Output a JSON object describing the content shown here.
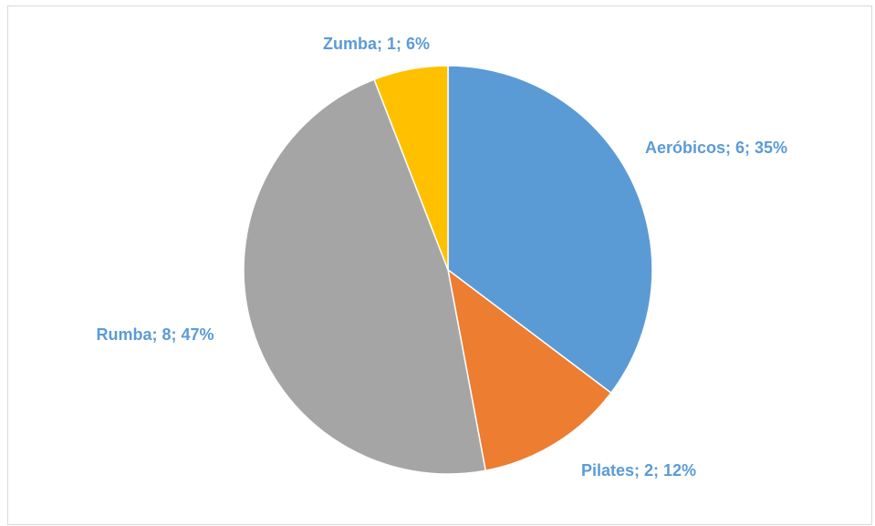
{
  "chart_data": {
    "type": "pie",
    "values": [
      6,
      2,
      8,
      1
    ],
    "value_labels": [
      "Aeróbicos; 6; 35%",
      "Pilates; 2; 12%",
      "Rumba; 8; 47%",
      "Zumba; 1; 6%"
    ],
    "colors": [
      "#5b9bd5",
      "#ed7d31",
      "#a5a5a5",
      "#ffc000"
    ]
  }
}
